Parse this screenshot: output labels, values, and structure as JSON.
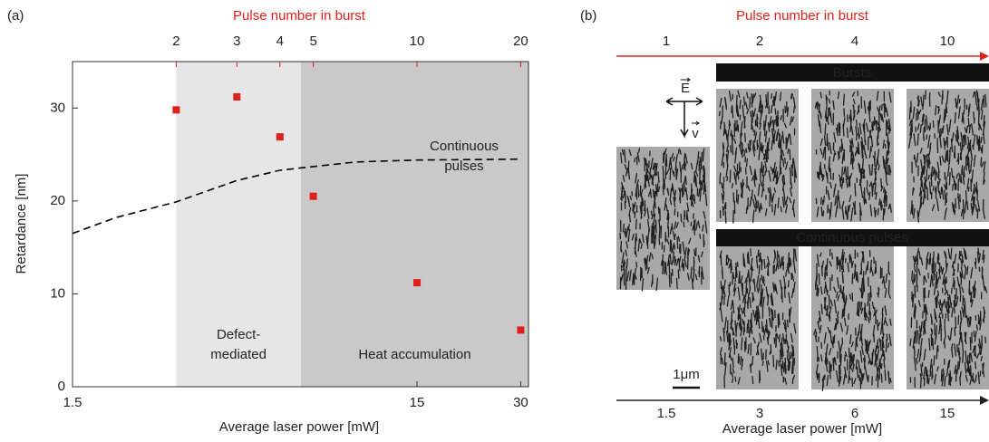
{
  "chart_data": {
    "type": "scatter",
    "panel_label": "(a)",
    "xlabel": "Average laser power [mW]",
    "x2label": "Pulse number in burst",
    "ylabel": "Retardance [nm]",
    "xscale": "log",
    "xlim": [
      1.5,
      31.6
    ],
    "xticks": [
      1.5,
      15,
      30
    ],
    "x2ticks": [
      {
        "value": 3,
        "label": "2"
      },
      {
        "value": 4.5,
        "label": "3"
      },
      {
        "value": 6,
        "label": "4"
      },
      {
        "value": 7.5,
        "label": "5"
      },
      {
        "value": 15,
        "label": "10"
      },
      {
        "value": 30,
        "label": "20"
      }
    ],
    "x2color": "#e0201b",
    "ylim": [
      0,
      35
    ],
    "yticks": [
      0,
      10,
      20,
      30
    ],
    "regions": [
      {
        "lines": [
          "Defect-",
          "mediated"
        ],
        "from": 3,
        "to": 6.9,
        "color": "#e6e6e6"
      },
      {
        "lines": [
          "Heat accumulation"
        ],
        "from": 6.9,
        "to": 31.6,
        "color": "#c9c9c9"
      }
    ],
    "series": [
      {
        "type": "scatter",
        "marker": "square",
        "color": "#e0201b",
        "x": [
          3,
          4.5,
          6,
          7.5,
          15,
          30
        ],
        "values": [
          29.8,
          31.2,
          26.9,
          20.5,
          11.2,
          6.1
        ]
      },
      {
        "type": "line",
        "dash": true,
        "color": "#000000",
        "x": [
          1.5,
          2,
          3,
          4.5,
          6,
          7.5,
          10,
          15,
          30
        ],
        "values": [
          16.5,
          18.2,
          19.9,
          22.2,
          23.3,
          23.7,
          24.2,
          24.4,
          24.5
        ]
      }
    ],
    "annotations": [
      {
        "lines": [
          "Continuous",
          "pulses"
        ]
      }
    ]
  },
  "panel_b": {
    "label": "(b)",
    "top_axis": {
      "title": "Pulse number in burst",
      "ticks": [
        "1",
        "2",
        "4",
        "10"
      ]
    },
    "bottom_axis": {
      "title": "Average laser power [mW]",
      "ticks": [
        "1.5",
        "3",
        "6",
        "15"
      ]
    },
    "rows": [
      "Bursts",
      "Continuous pulses"
    ],
    "scale_bar": "1μm",
    "field": "E",
    "velocity": "v"
  }
}
